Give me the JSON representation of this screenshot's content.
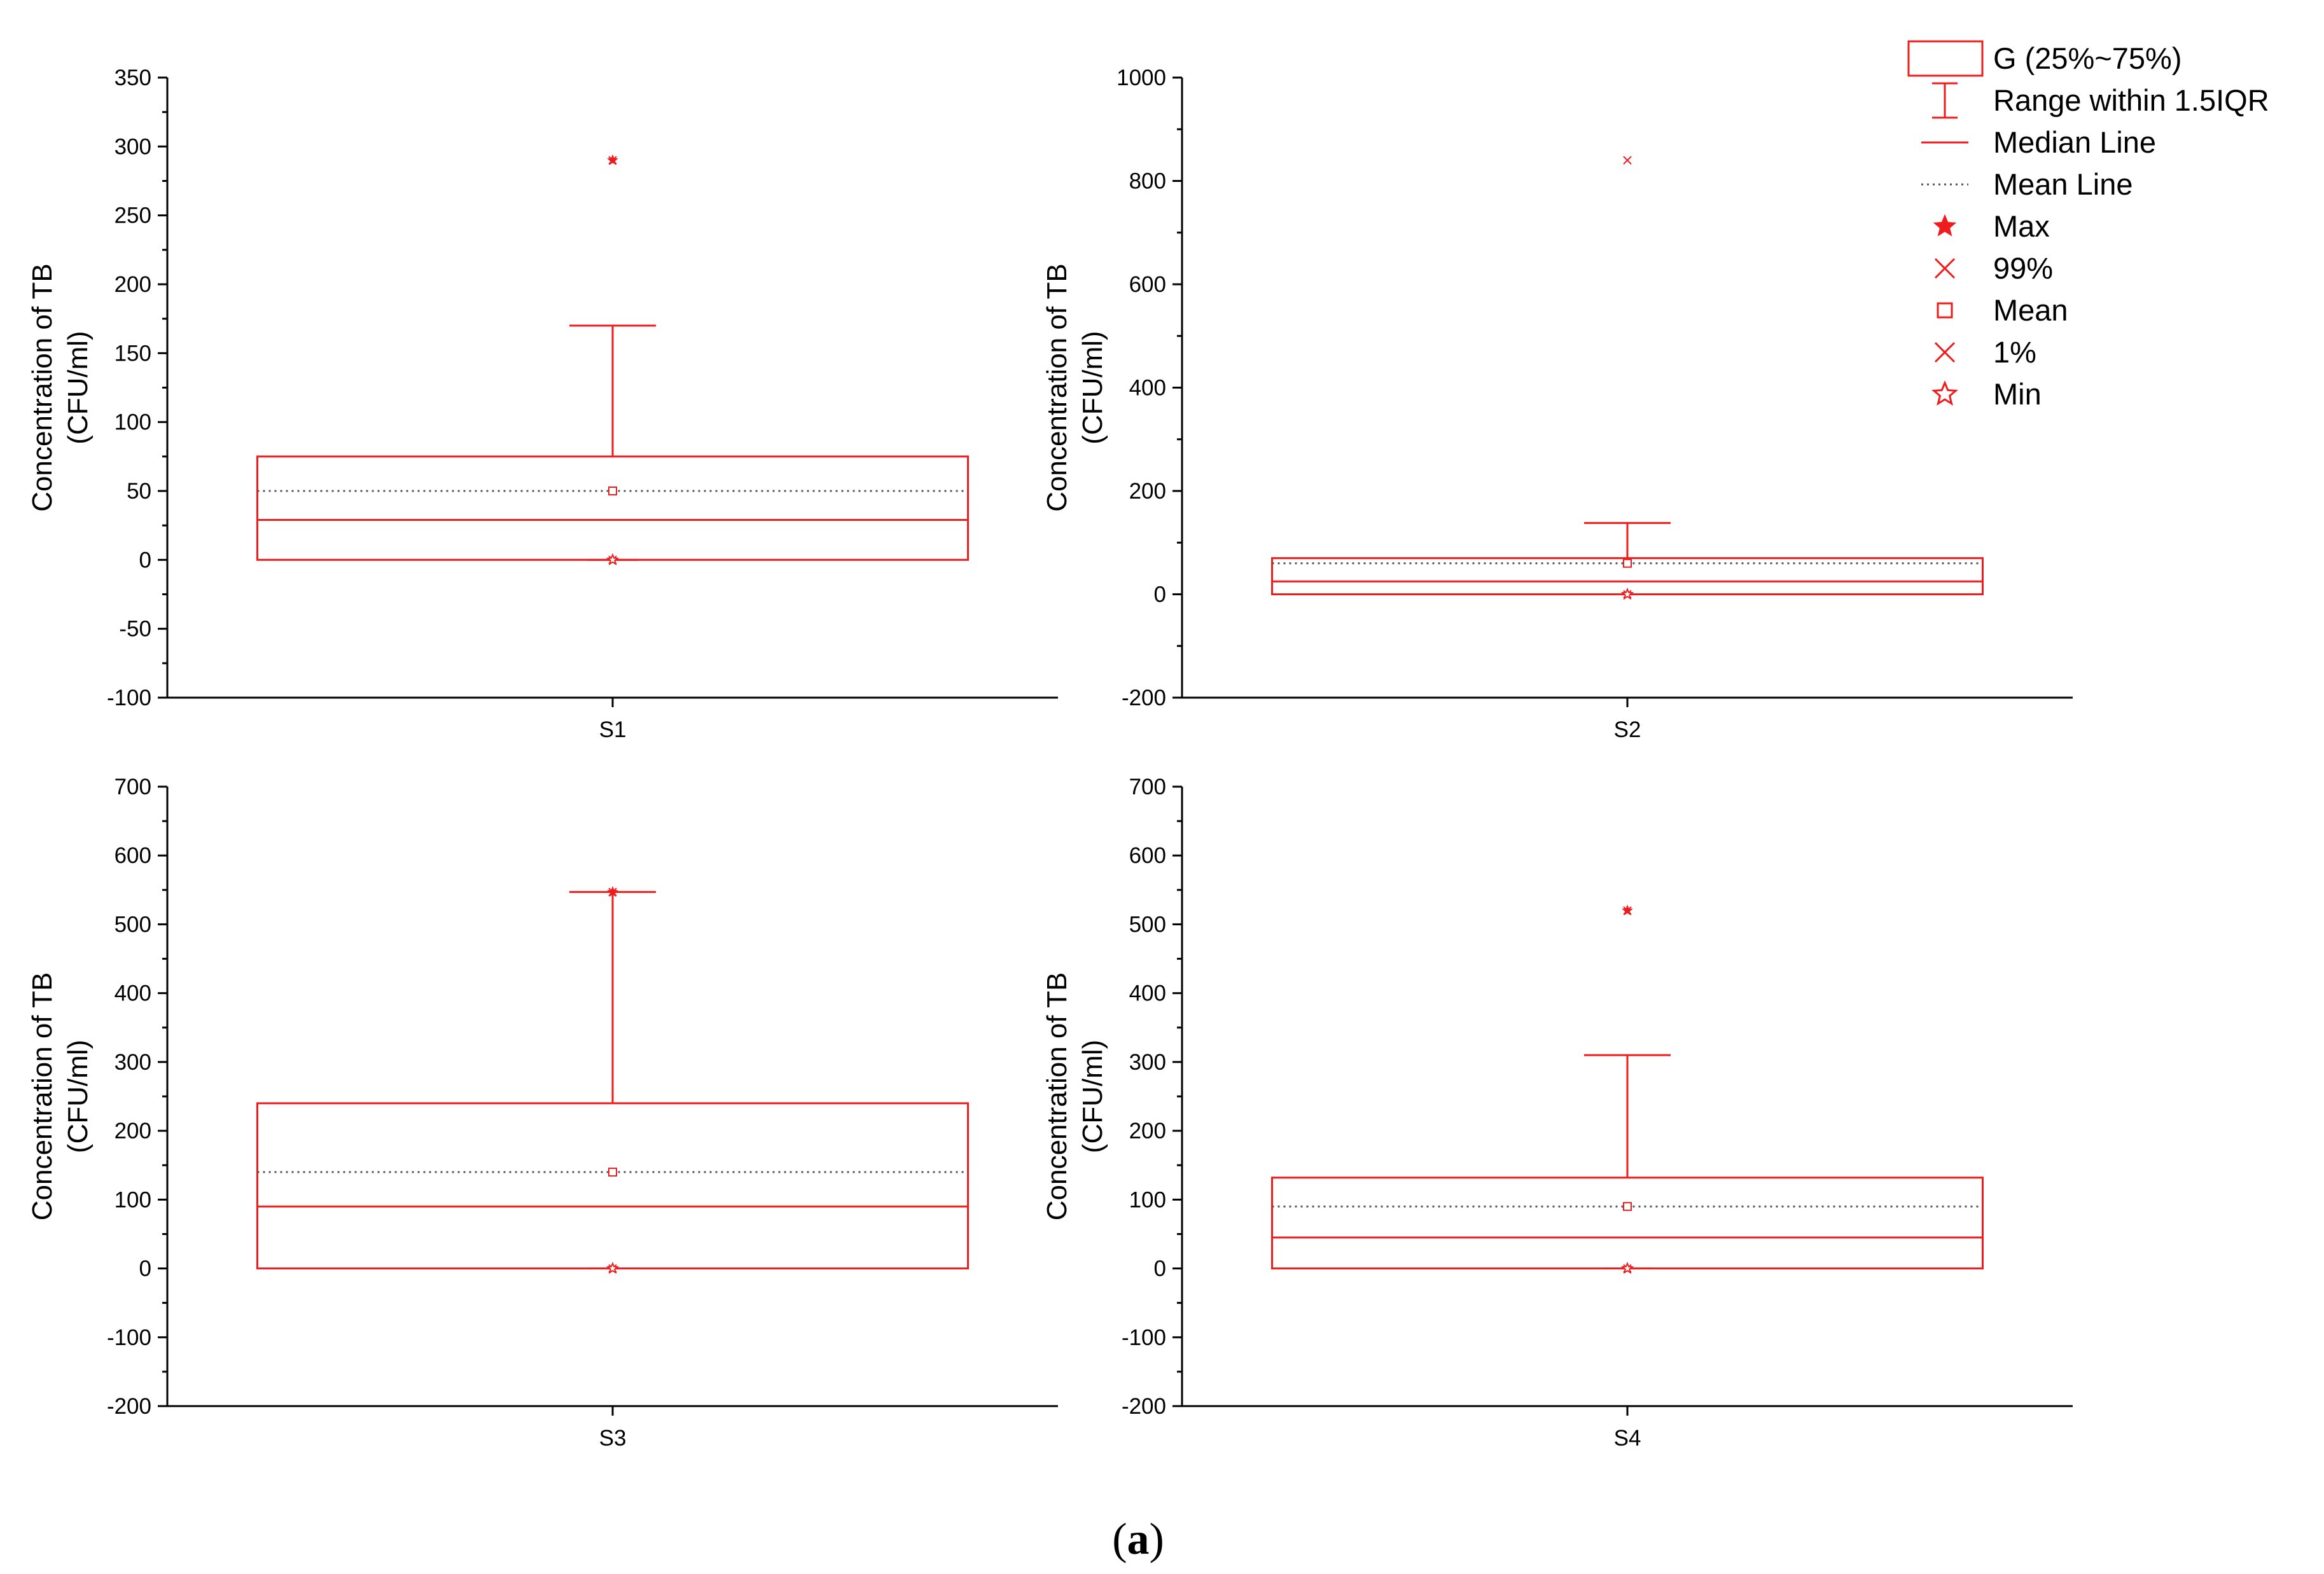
{
  "colors": {
    "box": "#ee1c1c",
    "axis": "#000000",
    "mean_line": "#555555"
  },
  "legend": {
    "items": [
      {
        "key": "box",
        "label": "G (25%~75%)"
      },
      {
        "key": "whisker",
        "label": "Range within 1.5IQR"
      },
      {
        "key": "median",
        "label": "Median Line"
      },
      {
        "key": "meanline",
        "label": "Mean Line"
      },
      {
        "key": "max",
        "label": "Max"
      },
      {
        "key": "p99",
        "label": "99%"
      },
      {
        "key": "mean",
        "label": "Mean"
      },
      {
        "key": "p1",
        "label": "1%"
      },
      {
        "key": "min",
        "label": "Min"
      }
    ]
  },
  "caption": {
    "open": "(",
    "letter": "a",
    "close": ")"
  },
  "chart_data": [
    {
      "type": "box",
      "category": "S1",
      "ylabel_line1": "Concentration of TB",
      "ylabel_line2": "(CFU/ml)",
      "ylim": [
        -100,
        350
      ],
      "yticks": [
        -100,
        -50,
        0,
        50,
        100,
        150,
        200,
        250,
        300,
        350
      ],
      "ytick_labels": [
        "-100",
        "-50",
        "0",
        "50",
        "100",
        "150",
        "200",
        "250",
        "300",
        "350"
      ],
      "q1": 0,
      "median": 29,
      "q3": 75,
      "mean": 50,
      "whisker_low": 0,
      "whisker_high": 170,
      "max": 290,
      "p99": 290,
      "p1": 0,
      "min": 0
    },
    {
      "type": "box",
      "category": "S2",
      "ylabel_line1": "Concentration of TB",
      "ylabel_line2": "(CFU/ml)",
      "ylim": [
        -200,
        1000
      ],
      "yticks": [
        -200,
        0,
        200,
        400,
        600,
        800,
        1000
      ],
      "ytick_labels": [
        "-200",
        "0",
        "200",
        "400",
        "600",
        "800",
        "1000"
      ],
      "q1": 0,
      "median": 25,
      "q3": 70,
      "mean": 60,
      "whisker_low": 0,
      "whisker_high": 138,
      "max": 840,
      "p99": 840,
      "p1": 0,
      "min": 0
    },
    {
      "type": "box",
      "category": "S3",
      "ylabel_line1": "Concentration of TB",
      "ylabel_line2": "(CFU/ml)",
      "ylim": [
        -200,
        700
      ],
      "yticks": [
        -200,
        -100,
        0,
        100,
        200,
        300,
        400,
        500,
        600,
        700
      ],
      "ytick_labels": [
        "-200",
        "-100",
        "0",
        "100",
        "200",
        "300",
        "400",
        "500",
        "600",
        "700"
      ],
      "q1": 0,
      "median": 90,
      "q3": 240,
      "mean": 140,
      "whisker_low": 0,
      "whisker_high": 547,
      "max": 547,
      "p99": 547,
      "p1": 0,
      "min": 0
    },
    {
      "type": "box",
      "category": "S4",
      "ylabel_line1": "Concentration of TB",
      "ylabel_line2": "(CFU/ml)",
      "ylim": [
        -200,
        700
      ],
      "yticks": [
        -200,
        -100,
        0,
        100,
        200,
        300,
        400,
        500,
        600,
        700
      ],
      "ytick_labels": [
        "-200",
        "-100",
        "0",
        "100",
        "200",
        "300",
        "400",
        "500",
        "600",
        "700"
      ],
      "q1": 0,
      "median": 45,
      "q3": 132,
      "mean": 90,
      "whisker_low": 0,
      "whisker_high": 310,
      "max": 520,
      "p99": 520,
      "p1": 0,
      "min": 0
    }
  ]
}
